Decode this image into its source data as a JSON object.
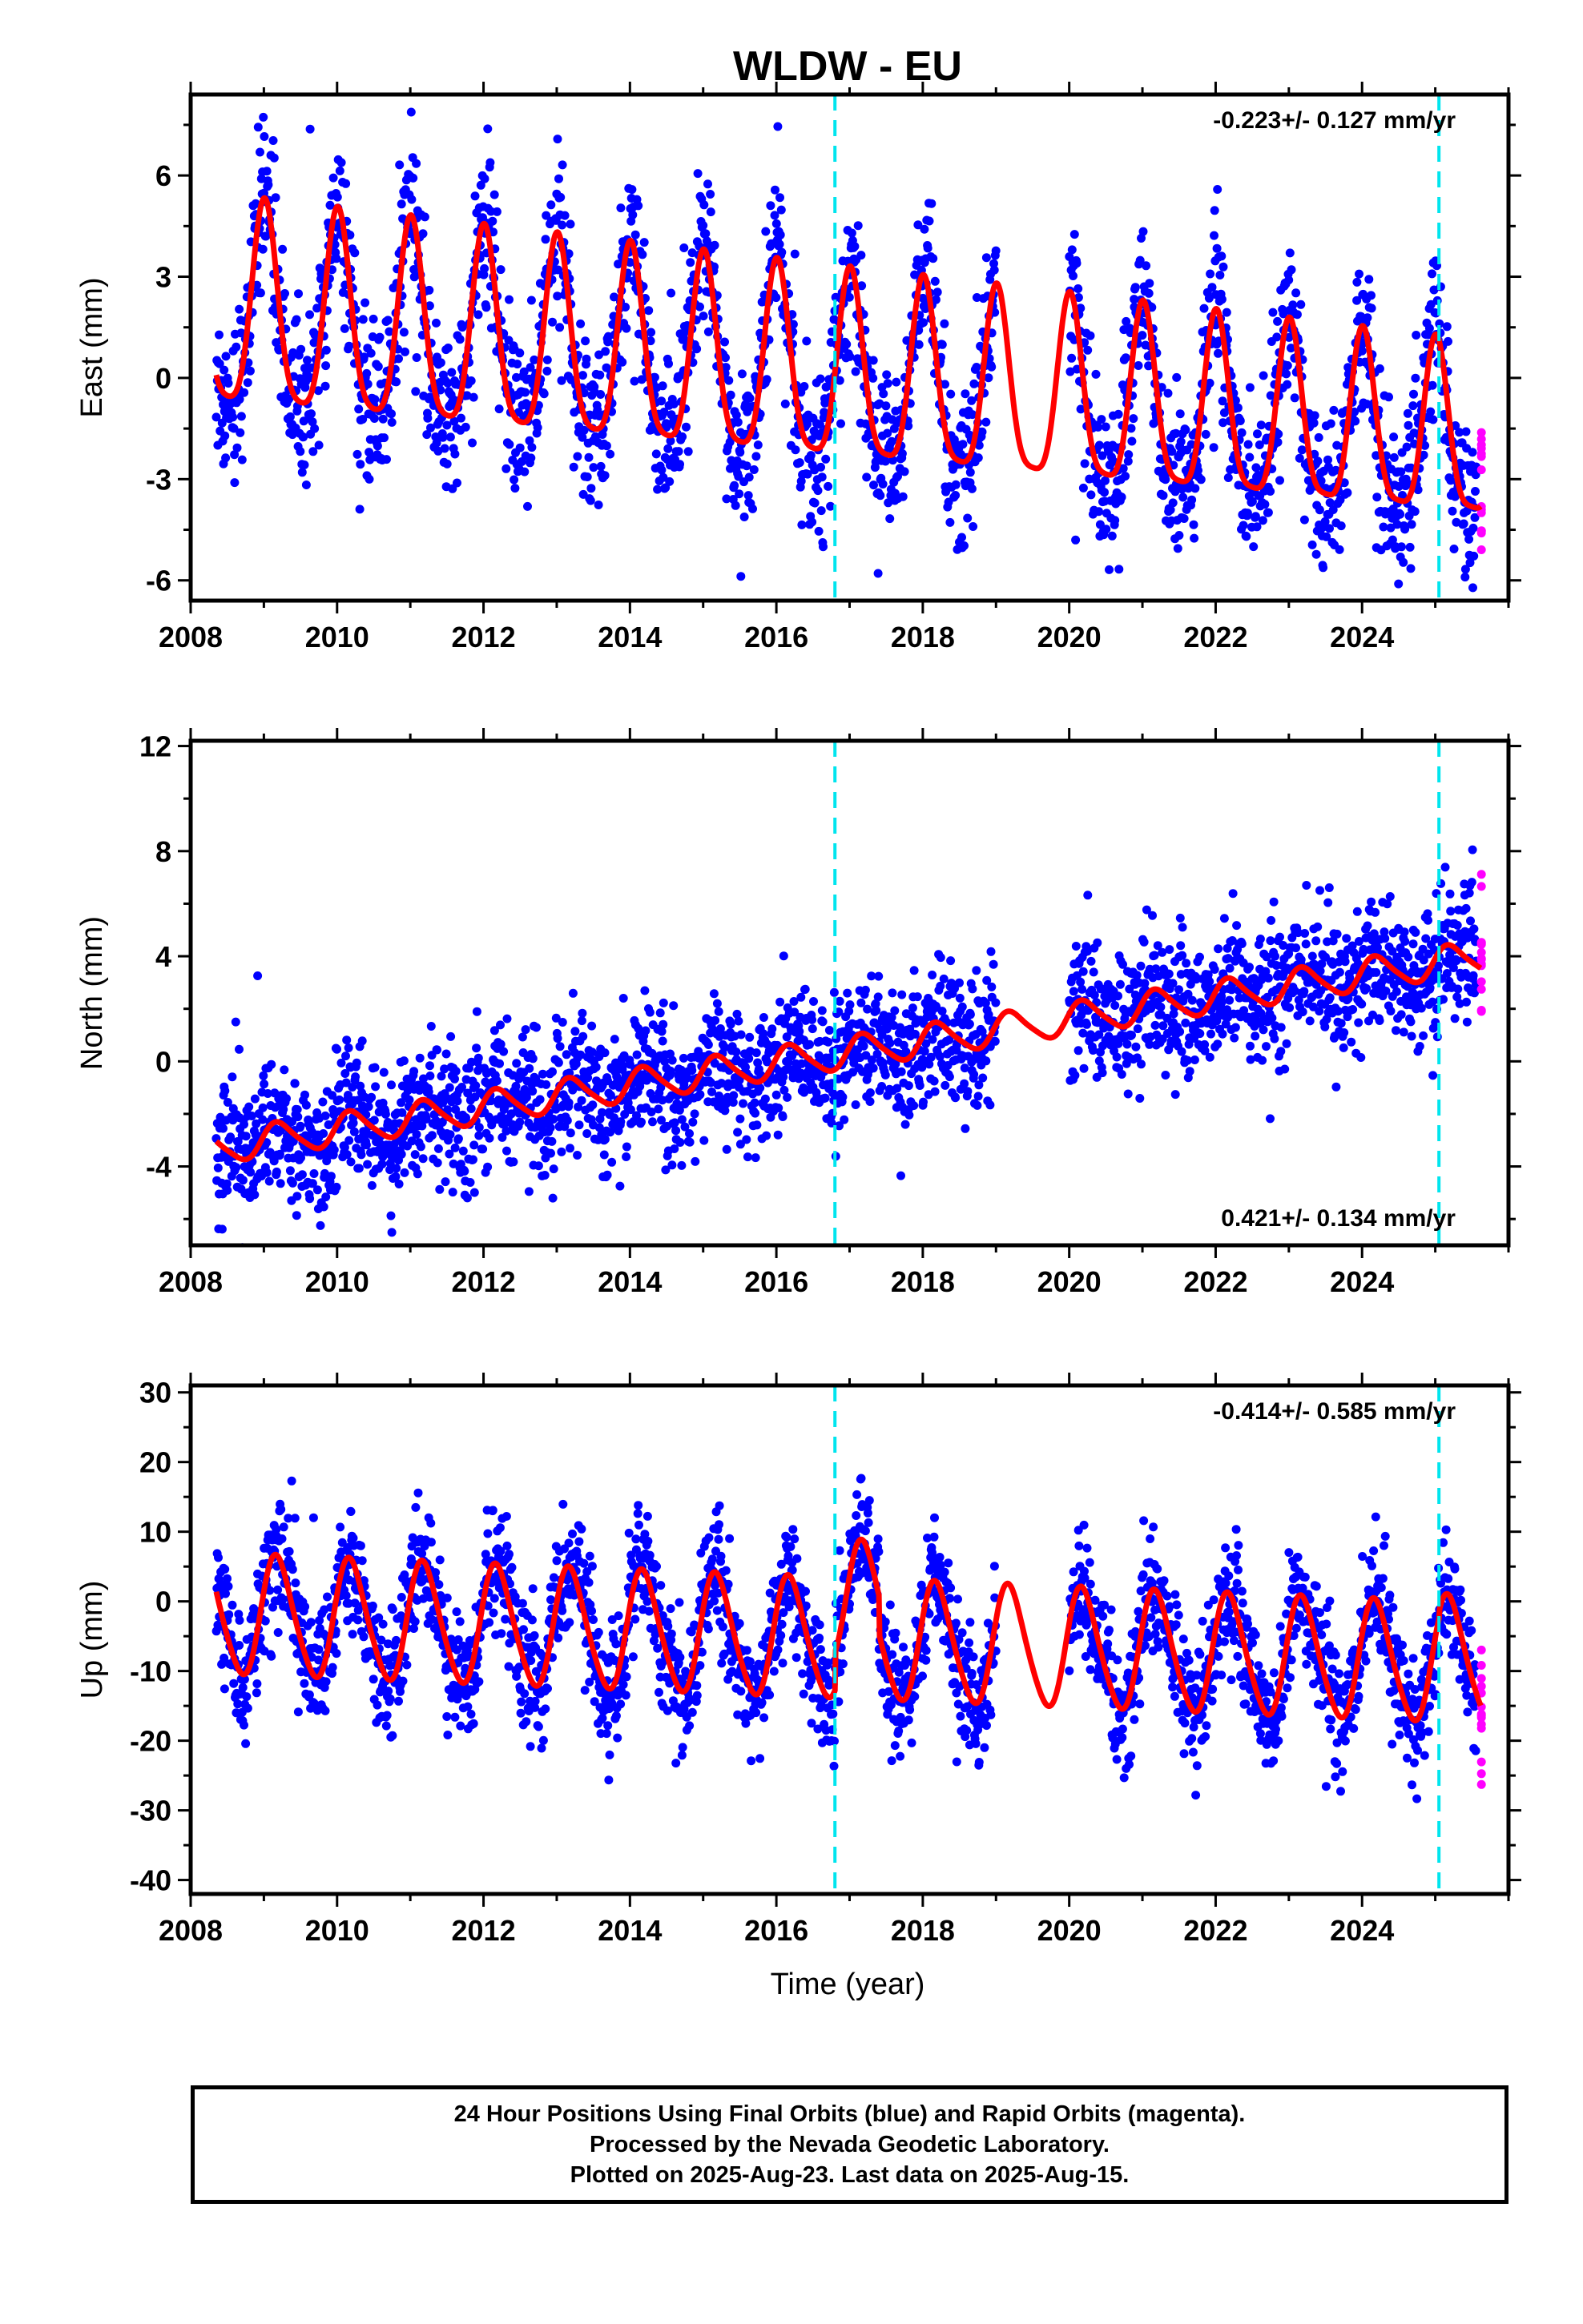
{
  "figure": {
    "title": "WLDW - EU",
    "xlabel": "Time (year)",
    "caption": [
      "24 Hour Positions Using Final Orbits (blue) and Rapid Orbits (magenta).",
      "Processed by the Nevada Geodetic Laboratory.",
      "Plotted on 2025-Aug-23. Last data on 2025-Aug-15."
    ]
  },
  "colors": {
    "final_orbits": "#0000ff",
    "rapid_orbits": "#ff00ff",
    "model_fit": "#ff0000",
    "equipment_change": "#00e5ee"
  },
  "chart_data": [
    {
      "type": "scatter",
      "title": "WLDW - EU",
      "ylabel": "East (mm)",
      "xlabel": "",
      "xlim": [
        2008,
        2026.0
      ],
      "ylim": [
        -6.6,
        8.4
      ],
      "xticks": [
        2008,
        2010,
        2012,
        2014,
        2016,
        2018,
        2020,
        2022,
        2024
      ],
      "yticks": [
        -6,
        -3,
        0,
        3,
        6
      ],
      "grid": false,
      "rate_label": "-0.223+/- 0.127 mm/yr",
      "rate_position": "top-right",
      "steps": [
        2016.8,
        2025.05
      ],
      "gap": [
        2019.0,
        2020.0
      ],
      "data_range": [
        2008.35,
        2025.62
      ],
      "fit": {
        "offset": 1.9,
        "trend": -0.223,
        "annual_amp": 3.0,
        "annual_phase": 1.5,
        "annual_amp_change": -0.5,
        "semiannual_amp": 0.6
      },
      "scatter_sd": 1.2,
      "series": [
        {
          "name": "Final Orbits",
          "color": "#0000ff"
        },
        {
          "name": "Rapid Orbits",
          "color": "#ff00ff"
        },
        {
          "name": "Model",
          "color": "#ff0000"
        }
      ]
    },
    {
      "type": "scatter",
      "title": "",
      "ylabel": "North (mm)",
      "xlabel": "",
      "xlim": [
        2008,
        2026.0
      ],
      "ylim": [
        -7,
        12.2
      ],
      "xticks": [
        2008,
        2010,
        2012,
        2014,
        2016,
        2018,
        2020,
        2022,
        2024
      ],
      "yticks": [
        -4,
        0,
        4,
        8,
        12
      ],
      "grid": false,
      "rate_label": "0.421+/- 0.134 mm/yr",
      "rate_position": "bottom-right",
      "steps": [
        2016.8,
        2025.05
      ],
      "gap": [
        2019.0,
        2020.0
      ],
      "data_range": [
        2008.35,
        2025.62
      ],
      "fit": {
        "offset": -3.3,
        "trend": 0.421,
        "annual_amp": 0.6,
        "annual_phase": 0.3,
        "annual_amp_change": 0,
        "semiannual_amp": 0.1
      },
      "scatter_sd": 1.3,
      "series": [
        {
          "name": "Final Orbits",
          "color": "#0000ff"
        },
        {
          "name": "Rapid Orbits",
          "color": "#ff00ff"
        },
        {
          "name": "Model",
          "color": "#ff0000"
        }
      ]
    },
    {
      "type": "scatter",
      "title": "",
      "ylabel": "Up (mm)",
      "xlabel": "Time (year)",
      "xlim": [
        2008,
        2026.0
      ],
      "ylim": [
        -42,
        31
      ],
      "xticks": [
        2008,
        2010,
        2012,
        2014,
        2016,
        2018,
        2020,
        2022,
        2024
      ],
      "yticks": [
        -40,
        -30,
        -20,
        -10,
        0,
        10,
        20,
        30
      ],
      "grid": false,
      "rate_label": "-0.414+/- 0.585 mm/yr",
      "rate_position": "top-right",
      "steps": [
        2016.8,
        2025.05
      ],
      "gap": [
        2019.0,
        2020.0
      ],
      "data_range": [
        2008.35,
        2025.62
      ],
      "fit": {
        "offset": -2.0,
        "trend": -0.414,
        "annual_amp": 8.5,
        "annual_phase": 0.4,
        "annual_amp_change": 0,
        "semiannual_amp": 1.0,
        "step_offsets": [
          5.5,
          1.0
        ]
      },
      "scatter_sd": 4.5,
      "series": [
        {
          "name": "Final Orbits",
          "color": "#0000ff"
        },
        {
          "name": "Rapid Orbits",
          "color": "#ff00ff"
        },
        {
          "name": "Model",
          "color": "#ff0000"
        }
      ]
    }
  ]
}
